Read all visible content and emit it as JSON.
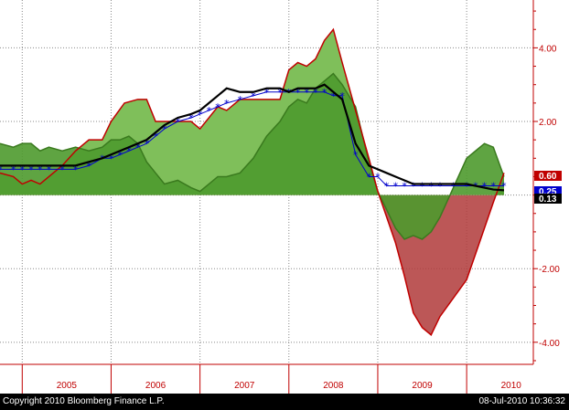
{
  "chart_data": {
    "type": "area",
    "x_labels": [
      "2005",
      "2006",
      "2007",
      "2008",
      "2009",
      "2010"
    ],
    "y_ticks": [
      "4.00",
      "2.00",
      "0.00",
      "-2.00",
      "-4.00"
    ],
    "y_tick_values": [
      4,
      2,
      0,
      -2,
      -4
    ],
    "ylim": [
      -4.6,
      5.3
    ],
    "xlim": [
      2004.75,
      2010.75
    ],
    "grid": true,
    "legend": "none",
    "last_value_labels": [
      {
        "text": "0.60",
        "value": 0.6,
        "color": "#c00000"
      },
      {
        "text": "0.25",
        "value": 0.25,
        "color": "#0000cc"
      },
      {
        "text": "0.13",
        "value": 0.13,
        "color": "#000000"
      }
    ],
    "series": [
      {
        "color": "#c00000",
        "style": "area-red-outline",
        "x": [
          2004.75,
          2004.9,
          2005.0,
          2005.1,
          2005.2,
          2005.3,
          2005.45,
          2005.6,
          2005.75,
          2005.9,
          2006.0,
          2006.15,
          2006.3,
          2006.4,
          2006.5,
          2006.6,
          2006.75,
          2006.9,
          2007.0,
          2007.1,
          2007.2,
          2007.3,
          2007.45,
          2007.6,
          2007.75,
          2007.9,
          2008.0,
          2008.1,
          2008.2,
          2008.3,
          2008.4,
          2008.5,
          2008.6,
          2008.75,
          2008.9,
          2009.0,
          2009.1,
          2009.2,
          2009.3,
          2009.4,
          2009.5,
          2009.6,
          2009.7,
          2009.85,
          2010.0,
          2010.1,
          2010.2,
          2010.3,
          2010.42
        ],
        "values": [
          0.6,
          0.5,
          0.3,
          0.4,
          0.3,
          0.5,
          0.8,
          1.2,
          1.5,
          1.5,
          2.0,
          2.5,
          2.6,
          2.6,
          2.0,
          2.0,
          2.0,
          2.0,
          1.8,
          2.1,
          2.4,
          2.3,
          2.6,
          2.6,
          2.6,
          2.6,
          3.4,
          3.6,
          3.5,
          3.7,
          4.2,
          4.5,
          3.6,
          2.3,
          1.0,
          0.1,
          -0.6,
          -1.3,
          -2.2,
          -3.2,
          -3.6,
          -3.8,
          -3.3,
          -2.8,
          -2.3,
          -1.6,
          -0.9,
          -0.2,
          0.6
        ]
      },
      {
        "color": "#4a8f2a",
        "style": "area-green",
        "x": [
          2004.75,
          2004.9,
          2005.0,
          2005.1,
          2005.2,
          2005.3,
          2005.45,
          2005.6,
          2005.75,
          2005.9,
          2006.0,
          2006.1,
          2006.2,
          2006.3,
          2006.4,
          2006.5,
          2006.6,
          2006.75,
          2006.9,
          2007.0,
          2007.1,
          2007.2,
          2007.3,
          2007.45,
          2007.6,
          2007.75,
          2007.9,
          2008.0,
          2008.1,
          2008.2,
          2008.3,
          2008.4,
          2008.5,
          2008.6,
          2008.75,
          2008.9,
          2009.0,
          2009.1,
          2009.2,
          2009.3,
          2009.4,
          2009.5,
          2009.6,
          2009.7,
          2009.85,
          2010.0,
          2010.1,
          2010.2,
          2010.3,
          2010.42
        ],
        "values": [
          1.4,
          1.3,
          1.4,
          1.4,
          1.2,
          1.3,
          1.2,
          1.3,
          1.2,
          1.3,
          1.5,
          1.5,
          1.6,
          1.4,
          0.9,
          0.6,
          0.3,
          0.4,
          0.2,
          0.1,
          0.3,
          0.5,
          0.5,
          0.6,
          1.0,
          1.6,
          2.0,
          2.4,
          2.6,
          2.5,
          2.9,
          3.1,
          3.3,
          3.0,
          2.4,
          0.9,
          0.1,
          -0.4,
          -0.9,
          -1.2,
          -1.1,
          -1.2,
          -1.0,
          -0.6,
          0.2,
          1.0,
          1.2,
          1.4,
          1.3,
          0.5
        ]
      },
      {
        "color": "#0000cc",
        "style": "line-asterisk",
        "x": [
          2004.75,
          2004.9,
          2005.0,
          2005.1,
          2005.2,
          2005.3,
          2005.45,
          2005.6,
          2005.75,
          2005.9,
          2006.0,
          2006.1,
          2006.2,
          2006.3,
          2006.4,
          2006.5,
          2006.6,
          2006.75,
          2006.9,
          2007.0,
          2007.1,
          2007.2,
          2007.3,
          2007.45,
          2007.6,
          2007.75,
          2007.9,
          2008.0,
          2008.1,
          2008.2,
          2008.3,
          2008.4,
          2008.5,
          2008.6,
          2008.75,
          2008.9,
          2009.0,
          2009.1,
          2009.2,
          2009.3,
          2009.4,
          2009.5,
          2009.6,
          2009.7,
          2009.85,
          2010.0,
          2010.1,
          2010.2,
          2010.3,
          2010.42
        ],
        "values": [
          0.7,
          0.7,
          0.7,
          0.7,
          0.7,
          0.7,
          0.7,
          0.7,
          0.8,
          1.0,
          1.0,
          1.1,
          1.2,
          1.3,
          1.4,
          1.6,
          1.8,
          2.0,
          2.1,
          2.2,
          2.3,
          2.4,
          2.5,
          2.6,
          2.7,
          2.8,
          2.8,
          2.8,
          2.8,
          2.8,
          2.8,
          2.8,
          2.7,
          2.7,
          1.1,
          0.5,
          0.5,
          0.25,
          0.25,
          0.25,
          0.25,
          0.25,
          0.25,
          0.25,
          0.25,
          0.25,
          0.25,
          0.25,
          0.25,
          0.25
        ]
      },
      {
        "color": "#000000",
        "style": "line",
        "x": [
          2004.75,
          2004.9,
          2005.0,
          2005.1,
          2005.2,
          2005.3,
          2005.45,
          2005.6,
          2005.75,
          2005.9,
          2006.0,
          2006.1,
          2006.2,
          2006.3,
          2006.4,
          2006.5,
          2006.6,
          2006.75,
          2006.9,
          2007.0,
          2007.1,
          2007.2,
          2007.3,
          2007.45,
          2007.6,
          2007.75,
          2007.9,
          2008.0,
          2008.1,
          2008.2,
          2008.3,
          2008.4,
          2008.5,
          2008.6,
          2008.75,
          2008.9,
          2009.0,
          2009.1,
          2009.2,
          2009.3,
          2009.4,
          2009.5,
          2009.6,
          2009.7,
          2009.85,
          2010.0,
          2010.1,
          2010.2,
          2010.3,
          2010.42
        ],
        "values": [
          0.8,
          0.8,
          0.8,
          0.8,
          0.8,
          0.8,
          0.8,
          0.8,
          0.9,
          1.0,
          1.1,
          1.2,
          1.3,
          1.4,
          1.5,
          1.7,
          1.9,
          2.1,
          2.2,
          2.3,
          2.5,
          2.7,
          2.9,
          2.8,
          2.8,
          2.9,
          2.9,
          2.8,
          2.9,
          2.9,
          2.9,
          3.0,
          2.8,
          2.6,
          1.4,
          0.8,
          0.7,
          0.6,
          0.5,
          0.4,
          0.3,
          0.3,
          0.3,
          0.3,
          0.3,
          0.3,
          0.25,
          0.2,
          0.15,
          0.13
        ]
      }
    ]
  },
  "footer": {
    "copyright": "Copyright 2010 Bloomberg Finance L.P.",
    "timestamp": "08-Jul-2010 10:36:32"
  }
}
